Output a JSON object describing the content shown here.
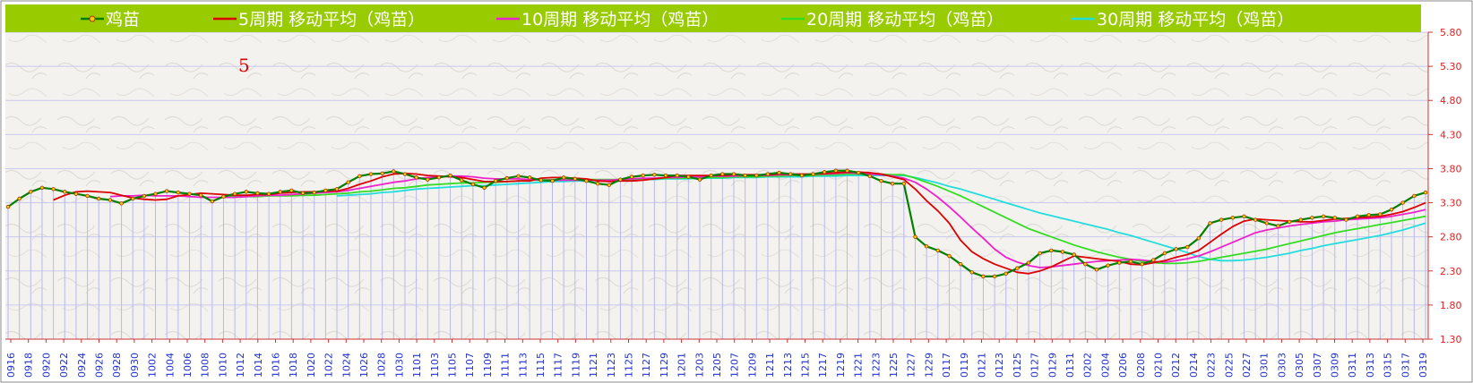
{
  "chart_data": {
    "type": "line",
    "title": "",
    "annotation": "5",
    "xlabel": "",
    "ylabel": "",
    "ylim": [
      1.3,
      5.8
    ],
    "yticks": [
      "1.30",
      "1.80",
      "2.30",
      "2.80",
      "3.30",
      "3.80",
      "4.30",
      "4.80",
      "5.30",
      "5.80"
    ],
    "grid": true,
    "legend_position": "top",
    "x_tick_labels": [
      "0916",
      "0918",
      "0920",
      "0922",
      "0924",
      "0926",
      "0928",
      "0930",
      "1002",
      "1004",
      "1006",
      "1008",
      "1010",
      "1012",
      "1014",
      "1016",
      "1018",
      "1020",
      "1022",
      "1024",
      "1026",
      "1028",
      "1030",
      "1101",
      "1103",
      "1105",
      "1107",
      "1109",
      "1111",
      "1113",
      "1115",
      "1117",
      "1119",
      "1121",
      "1123",
      "1125",
      "1127",
      "1129",
      "1201",
      "1203",
      "1205",
      "1207",
      "1209",
      "1211",
      "1213",
      "1215",
      "1217",
      "1219",
      "1221",
      "1223",
      "1225",
      "1227",
      "1229",
      "0117",
      "0119",
      "0121",
      "0123",
      "0125",
      "0127",
      "0129",
      "0131",
      "0202",
      "0204",
      "0206",
      "0208",
      "0210",
      "0212",
      "0214",
      "0223",
      "0225",
      "0227",
      "0301",
      "0303",
      "0305",
      "0307",
      "0309",
      "0311",
      "0313",
      "0315",
      "0317",
      "0319"
    ],
    "series": [
      {
        "name": "鸡苗",
        "color": "#008000",
        "values": [
          3.24,
          3.36,
          3.46,
          3.52,
          3.5,
          3.46,
          3.43,
          3.4,
          3.36,
          3.34,
          3.29,
          3.36,
          3.4,
          3.43,
          3.47,
          3.45,
          3.43,
          3.41,
          3.32,
          3.39,
          3.43,
          3.46,
          3.44,
          3.43,
          3.46,
          3.48,
          3.44,
          3.45,
          3.48,
          3.5,
          3.6,
          3.69,
          3.72,
          3.73,
          3.76,
          3.72,
          3.67,
          3.64,
          3.67,
          3.7,
          3.63,
          3.57,
          3.52,
          3.62,
          3.66,
          3.69,
          3.67,
          3.63,
          3.62,
          3.67,
          3.65,
          3.62,
          3.58,
          3.56,
          3.64,
          3.68,
          3.7,
          3.71,
          3.7,
          3.7,
          3.68,
          3.64,
          3.7,
          3.72,
          3.72,
          3.7,
          3.7,
          3.72,
          3.74,
          3.72,
          3.7,
          3.72,
          3.75,
          3.77,
          3.77,
          3.74,
          3.69,
          3.62,
          3.58,
          3.58,
          2.8,
          2.66,
          2.6,
          2.52,
          2.4,
          2.28,
          2.22,
          2.22,
          2.26,
          2.34,
          2.42,
          2.56,
          2.6,
          2.58,
          2.54,
          2.4,
          2.32,
          2.38,
          2.42,
          2.44,
          2.4,
          2.46,
          2.56,
          2.62,
          2.65,
          2.78,
          3.0,
          3.05,
          3.08,
          3.1,
          3.05,
          3.0,
          2.96,
          3.02,
          3.05,
          3.08,
          3.1,
          3.08,
          3.05,
          3.1,
          3.12,
          3.13,
          3.2,
          3.3,
          3.4,
          3.45
        ]
      },
      {
        "name": "5周期 移动平均（鸡苗）",
        "color": "#dd0000",
        "values": [
          null,
          null,
          null,
          null,
          3.34,
          3.41,
          3.46,
          3.47,
          3.46,
          3.45,
          3.41,
          3.37,
          3.35,
          3.34,
          3.35,
          3.4,
          3.42,
          3.44,
          3.43,
          3.42,
          3.41,
          3.41,
          3.42,
          3.42,
          3.44,
          3.45,
          3.46,
          3.46,
          3.47,
          3.47,
          3.51,
          3.57,
          3.62,
          3.68,
          3.72,
          3.73,
          3.72,
          3.7,
          3.69,
          3.68,
          3.67,
          3.64,
          3.61,
          3.61,
          3.61,
          3.62,
          3.62,
          3.66,
          3.67,
          3.67,
          3.66,
          3.65,
          3.62,
          3.61,
          3.62,
          3.62,
          3.63,
          3.65,
          3.67,
          3.7,
          3.7,
          3.7,
          3.7,
          3.7,
          3.71,
          3.71,
          3.71,
          3.71,
          3.72,
          3.72,
          3.72,
          3.72,
          3.73,
          3.74,
          3.75,
          3.75,
          3.74,
          3.72,
          3.68,
          3.64,
          3.5,
          3.33,
          3.18,
          3.0,
          2.75,
          2.58,
          2.48,
          2.4,
          2.34,
          2.28,
          2.26,
          2.3,
          2.36,
          2.44,
          2.52,
          2.5,
          2.48,
          2.46,
          2.44,
          2.4,
          2.39,
          2.42,
          2.45,
          2.5,
          2.54,
          2.6,
          2.72,
          2.84,
          2.95,
          3.03,
          3.06,
          3.05,
          3.04,
          3.03,
          3.02,
          3.02,
          3.04,
          3.06,
          3.07,
          3.08,
          3.09,
          3.1,
          3.13,
          3.17,
          3.23,
          3.3
        ]
      },
      {
        "name": "10周期 移动平均（鸡苗）",
        "color": "#ee22cc",
        "values": [
          null,
          null,
          null,
          null,
          null,
          null,
          null,
          null,
          null,
          3.39,
          3.4,
          3.4,
          3.41,
          3.4,
          3.4,
          3.4,
          3.39,
          3.38,
          3.38,
          3.38,
          3.38,
          3.39,
          3.4,
          3.41,
          3.41,
          3.42,
          3.43,
          3.44,
          3.45,
          3.46,
          3.48,
          3.51,
          3.54,
          3.57,
          3.6,
          3.62,
          3.65,
          3.67,
          3.68,
          3.69,
          3.69,
          3.68,
          3.66,
          3.65,
          3.65,
          3.65,
          3.64,
          3.63,
          3.63,
          3.63,
          3.63,
          3.63,
          3.63,
          3.63,
          3.64,
          3.65,
          3.66,
          3.66,
          3.67,
          3.67,
          3.68,
          3.68,
          3.69,
          3.69,
          3.69,
          3.7,
          3.7,
          3.7,
          3.71,
          3.71,
          3.71,
          3.72,
          3.72,
          3.73,
          3.74,
          3.73,
          3.72,
          3.71,
          3.69,
          3.66,
          3.6,
          3.5,
          3.38,
          3.24,
          3.09,
          2.93,
          2.78,
          2.62,
          2.5,
          2.43,
          2.38,
          2.35,
          2.36,
          2.38,
          2.4,
          2.42,
          2.44,
          2.45,
          2.46,
          2.47,
          2.46,
          2.44,
          2.43,
          2.45,
          2.48,
          2.52,
          2.58,
          2.65,
          2.72,
          2.79,
          2.86,
          2.9,
          2.93,
          2.96,
          2.98,
          3.0,
          3.02,
          3.03,
          3.05,
          3.06,
          3.07,
          3.08,
          3.1,
          3.13,
          3.16,
          3.2
        ]
      },
      {
        "name": "20周期 移动平均（鸡苗）",
        "color": "#33dd22",
        "values": [
          null,
          null,
          null,
          null,
          null,
          null,
          null,
          null,
          null,
          null,
          null,
          null,
          null,
          null,
          null,
          null,
          null,
          null,
          null,
          3.39,
          3.39,
          3.39,
          3.39,
          3.4,
          3.4,
          3.4,
          3.41,
          3.41,
          3.42,
          3.43,
          3.44,
          3.46,
          3.47,
          3.49,
          3.51,
          3.52,
          3.54,
          3.56,
          3.57,
          3.58,
          3.59,
          3.59,
          3.6,
          3.6,
          3.61,
          3.62,
          3.63,
          3.63,
          3.64,
          3.64,
          3.64,
          3.64,
          3.64,
          3.64,
          3.64,
          3.64,
          3.65,
          3.65,
          3.66,
          3.66,
          3.66,
          3.67,
          3.67,
          3.67,
          3.68,
          3.68,
          3.68,
          3.69,
          3.69,
          3.7,
          3.7,
          3.7,
          3.71,
          3.71,
          3.72,
          3.72,
          3.72,
          3.72,
          3.71,
          3.71,
          3.66,
          3.6,
          3.54,
          3.47,
          3.4,
          3.32,
          3.24,
          3.16,
          3.08,
          3.0,
          2.92,
          2.86,
          2.8,
          2.74,
          2.68,
          2.63,
          2.58,
          2.54,
          2.5,
          2.47,
          2.44,
          2.42,
          2.41,
          2.41,
          2.42,
          2.44,
          2.47,
          2.5,
          2.53,
          2.56,
          2.59,
          2.62,
          2.66,
          2.7,
          2.74,
          2.78,
          2.82,
          2.86,
          2.89,
          2.92,
          2.95,
          2.98,
          3.01,
          3.04,
          3.07,
          3.1
        ]
      },
      {
        "name": "30周期 移动平均（鸡苗）",
        "color": "#22dddd",
        "values": [
          null,
          null,
          null,
          null,
          null,
          null,
          null,
          null,
          null,
          null,
          null,
          null,
          null,
          null,
          null,
          null,
          null,
          null,
          null,
          null,
          null,
          null,
          null,
          null,
          null,
          null,
          null,
          null,
          null,
          3.4,
          3.41,
          3.42,
          3.43,
          3.45,
          3.46,
          3.48,
          3.5,
          3.51,
          3.52,
          3.53,
          3.54,
          3.55,
          3.55,
          3.56,
          3.57,
          3.58,
          3.59,
          3.6,
          3.61,
          3.61,
          3.62,
          3.62,
          3.63,
          3.63,
          3.63,
          3.64,
          3.64,
          3.64,
          3.65,
          3.65,
          3.65,
          3.66,
          3.66,
          3.66,
          3.67,
          3.67,
          3.67,
          3.68,
          3.68,
          3.68,
          3.68,
          3.69,
          3.69,
          3.69,
          3.7,
          3.7,
          3.7,
          3.7,
          3.7,
          3.7,
          3.67,
          3.63,
          3.59,
          3.54,
          3.5,
          3.45,
          3.4,
          3.35,
          3.3,
          3.25,
          3.2,
          3.15,
          3.11,
          3.07,
          3.03,
          2.99,
          2.95,
          2.91,
          2.86,
          2.82,
          2.77,
          2.72,
          2.67,
          2.62,
          2.57,
          2.51,
          2.47,
          2.45,
          2.45,
          2.46,
          2.48,
          2.5,
          2.53,
          2.56,
          2.6,
          2.63,
          2.67,
          2.7,
          2.73,
          2.76,
          2.79,
          2.82,
          2.86,
          2.9,
          2.95,
          3.0
        ]
      }
    ]
  }
}
